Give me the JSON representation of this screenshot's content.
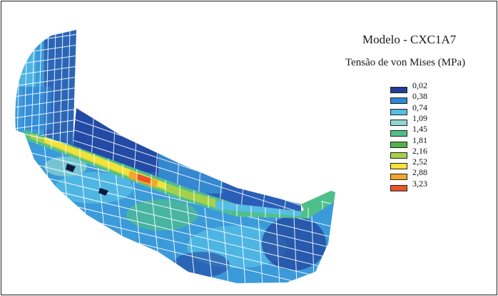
{
  "figure": {
    "title": "Modelo - CXC1A7",
    "subtitle": "Tensão de von Mises (MPa)"
  },
  "legend": {
    "entries": [
      {
        "label": "0,02",
        "color": "#1f3d99"
      },
      {
        "label": "0,38",
        "color": "#2f86d6"
      },
      {
        "label": "0,74",
        "color": "#55bde6"
      },
      {
        "label": "1,09",
        "color": "#8fd6d0"
      },
      {
        "label": "1,45",
        "color": "#4fbf8a"
      },
      {
        "label": "1,81",
        "color": "#55b24a"
      },
      {
        "label": "2,16",
        "color": "#a6d14a"
      },
      {
        "label": "2,52",
        "color": "#f2e23a"
      },
      {
        "label": "2,88",
        "color": "#f2a82a"
      },
      {
        "label": "3,23",
        "color": "#e8552a"
      }
    ]
  },
  "colors": {
    "mesh_line": "#ffffff",
    "frame_border": "#222222"
  }
}
